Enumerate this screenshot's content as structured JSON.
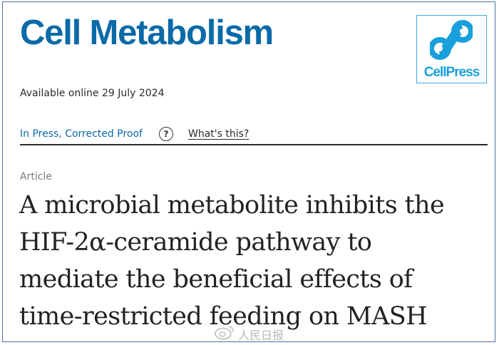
{
  "journal": {
    "title": "Cell Metabolism"
  },
  "publisher_logo": {
    "text": "CellPress",
    "icon": "cellpress-logo-icon",
    "color": "#19a0dc"
  },
  "availability": "Available online 29 July 2024",
  "status": {
    "label": "In Press, Corrected Proof",
    "help_icon": "question-circle-icon",
    "help_glyph": "?",
    "help_link": "What's this?"
  },
  "article": {
    "type": "Article",
    "title_lines": [
      "A microbial metabolite inhibits the",
      "HIF-2α-ceramide pathway to",
      "mediate the beneficial effects of",
      "time-restricted feeding on MASH"
    ]
  },
  "watermark": {
    "text": "人民日报",
    "icon": "weibo-icon"
  },
  "colors": {
    "journal_blue": "#0a6aa8",
    "frame": "#4a6fa5",
    "text": "#222222"
  }
}
